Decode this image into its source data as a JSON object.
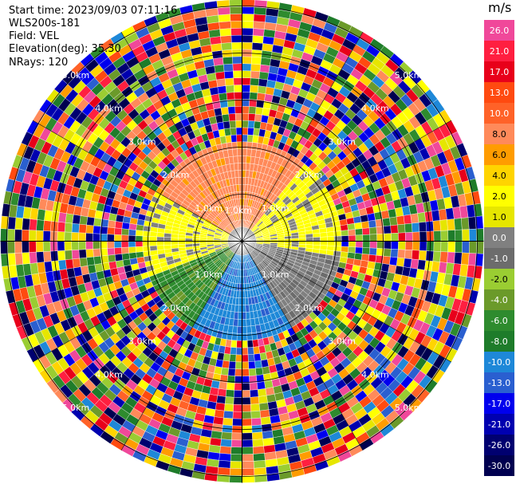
{
  "header": {
    "start_time": "Start time: 2023/09/03 07:11:16",
    "instrument": "WLS200s-181",
    "field": "Field: VEL",
    "elevation": "Elevation(deg): 35.30",
    "nrays": "NRays: 120"
  },
  "colorbar": {
    "unit": "m/s",
    "segments": [
      {
        "label": "26.0",
        "color": "#f0489a"
      },
      {
        "label": "21.0",
        "color": "#ff1f40"
      },
      {
        "label": "17.0",
        "color": "#e8001a"
      },
      {
        "label": "13.0",
        "color": "#ff4a10"
      },
      {
        "label": "10.0",
        "color": "#ff6228"
      },
      {
        "label": "8.0",
        "color": "#ff8a5a"
      },
      {
        "label": "6.0",
        "color": "#ff9c00"
      },
      {
        "label": "4.0",
        "color": "#ffd400"
      },
      {
        "label": "2.0",
        "color": "#ffff00"
      },
      {
        "label": "1.0",
        "color": "#e6e600"
      },
      {
        "label": "0.0",
        "color": "#808080"
      },
      {
        "label": "-1.0",
        "color": "#6c6c6c"
      },
      {
        "label": "-2.0",
        "color": "#9acd32"
      },
      {
        "label": "-4.0",
        "color": "#6b9a2a"
      },
      {
        "label": "-6.0",
        "color": "#2e8b2e"
      },
      {
        "label": "-8.0",
        "color": "#1e7c2a"
      },
      {
        "label": "-10.0",
        "color": "#1e88d8"
      },
      {
        "label": "-13.0",
        "color": "#2a5fd0"
      },
      {
        "label": "-17.0",
        "color": "#0000ee"
      },
      {
        "label": "-21.0",
        "color": "#0000b0"
      },
      {
        "label": "-26.0",
        "color": "#000070"
      },
      {
        "label": "-30.0",
        "color": "#000050"
      }
    ]
  },
  "chart_data": {
    "type": "heatmap",
    "ring_labels": [
      "1.0km",
      "2.0km",
      "3.0km",
      "4.0km",
      "5.0km"
    ],
    "near_field": [
      {
        "sector": "north",
        "dominant": "8.0"
      },
      {
        "sector": "east",
        "dominant": "2.0"
      },
      {
        "sector": "west",
        "dominant": "2.0"
      },
      {
        "sector": "south",
        "dominant": "-10.0"
      },
      {
        "sector": "south-west",
        "dominant": "-6.0"
      },
      {
        "sector": "center",
        "dominant": "0.0"
      }
    ]
  }
}
